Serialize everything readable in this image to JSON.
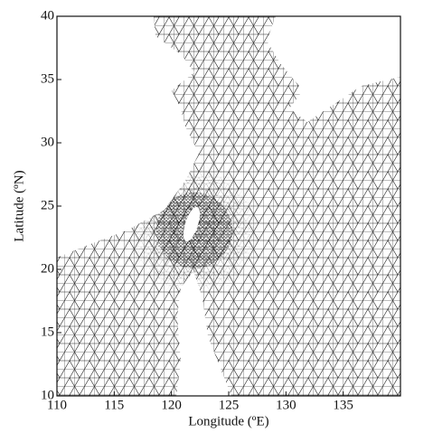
{
  "figure": {
    "xlabel": "Longitude (ºE)",
    "ylabel": "Latitude (ºN)",
    "xlim": [
      110,
      140
    ],
    "ylim": [
      10,
      40
    ],
    "xticks": [
      110,
      115,
      120,
      125,
      130,
      135
    ],
    "yticks": [
      10,
      15,
      20,
      25,
      30,
      35,
      40
    ]
  }
}
